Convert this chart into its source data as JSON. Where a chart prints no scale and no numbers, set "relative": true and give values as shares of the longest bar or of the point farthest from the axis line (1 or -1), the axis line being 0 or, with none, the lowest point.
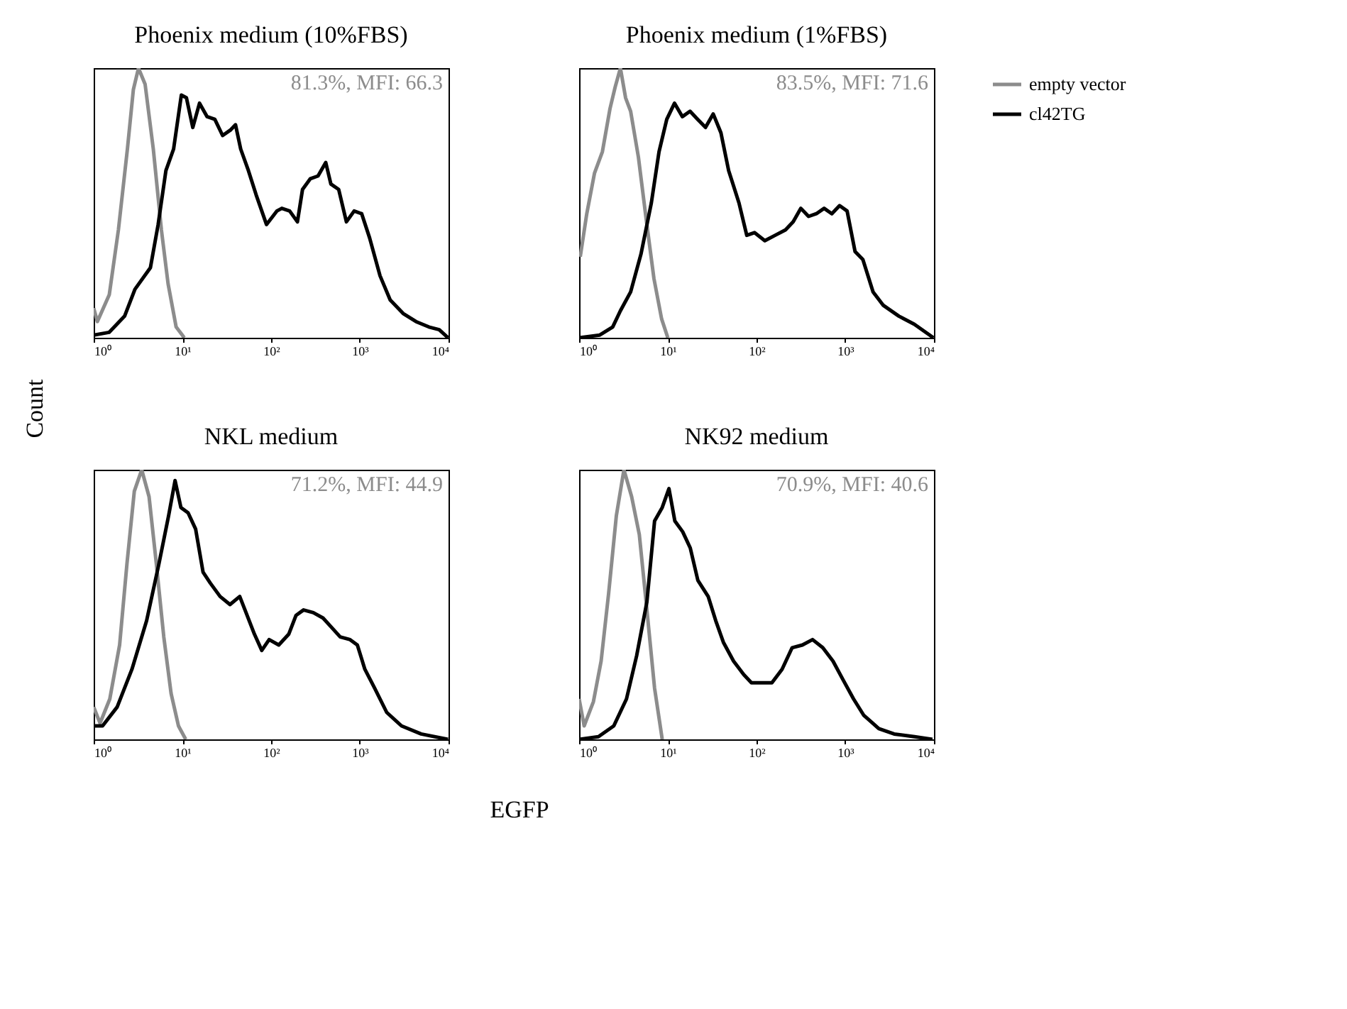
{
  "chart_data": [
    {
      "type": "line",
      "title": "Phoenix medium (10%FBS)",
      "xlabel": "EGFP",
      "ylabel": "Count",
      "annotations": [
        "81.3%, MFI: 66.3"
      ],
      "relative": true,
      "log": "x",
      "grid": false,
      "xlim": [
        1,
        10000
      ],
      "xticks": [
        {
          "value": 1,
          "label": "10⁰"
        },
        {
          "value": 10,
          "label": "10¹"
        },
        {
          "value": 100,
          "label": "10²"
        },
        {
          "value": 1000,
          "label": "10³"
        },
        {
          "value": 10000,
          "label": "10⁴"
        }
      ],
      "series": [
        {
          "color": "#8c8c8c",
          "x": [
            1,
            1.1,
            1.5,
            1.9,
            2.4,
            2.8,
            3.2,
            3.8,
            4.7,
            5.8,
            6.9,
            8.5,
            10.5
          ],
          "values": [
            0.11,
            0.06,
            0.16,
            0.4,
            0.7,
            0.92,
            1.0,
            0.94,
            0.7,
            0.4,
            0.2,
            0.04,
            0
          ]
        },
        {
          "color": "#000000",
          "x": [
            1,
            1.49,
            2.23,
            2.92,
            4.36,
            5.33,
            6.52,
            7.96,
            9.73,
            11.1,
            13.1,
            15.6,
            19.0,
            23.2,
            28.4,
            34.7,
            39.7,
            45.4,
            55.5,
            67.8,
            88.7,
            116,
            132,
            162,
            198,
            226,
            277,
            338,
            413,
            472,
            578,
            706,
            863,
            1050,
            1290,
            1690,
            2200,
            3080,
            4300,
            6010,
            7850,
            9870
          ],
          "values": [
            0.01,
            0.02,
            0.08,
            0.18,
            0.26,
            0.42,
            0.62,
            0.7,
            0.9,
            0.89,
            0.78,
            0.87,
            0.82,
            0.81,
            0.75,
            0.77,
            0.79,
            0.7,
            0.62,
            0.53,
            0.42,
            0.47,
            0.48,
            0.47,
            0.43,
            0.55,
            0.59,
            0.6,
            0.65,
            0.57,
            0.55,
            0.43,
            0.47,
            0.46,
            0.37,
            0.23,
            0.14,
            0.09,
            0.06,
            0.04,
            0.03,
            0
          ]
        }
      ]
    },
    {
      "type": "line",
      "title": "Phoenix medium (1%FBS)",
      "annotations": [
        "83.5%, MFI: 71.6"
      ],
      "relative": true,
      "log": "x",
      "grid": false,
      "legend": "right",
      "xlim": [
        1,
        10000
      ],
      "xticks": [
        {
          "value": 1,
          "label": "10⁰"
        },
        {
          "value": 10,
          "label": "10¹"
        },
        {
          "value": 100,
          "label": "10²"
        },
        {
          "value": 1000,
          "label": "10³"
        },
        {
          "value": 10000,
          "label": "10⁴"
        }
      ],
      "series": [
        {
          "name": "empty vector",
          "color": "#8c8c8c",
          "x": [
            1.03,
            1.22,
            1.49,
            1.83,
            2.23,
            2.55,
            2.92,
            3.34,
            3.81,
            4.66,
            5.7,
            6.97,
            8.51,
            10
          ],
          "values": [
            0.3,
            0.46,
            0.61,
            0.69,
            0.85,
            0.93,
            1.0,
            0.89,
            0.84,
            0.67,
            0.44,
            0.22,
            0.07,
            0
          ]
        },
        {
          "name": "cl42TG",
          "color": "#000000",
          "x": [
            1,
            1.71,
            2.39,
            2.92,
            3.81,
            4.98,
            6.52,
            7.96,
            9.73,
            11.9,
            14.6,
            17.8,
            21.7,
            26.6,
            32.5,
            39.7,
            48.5,
            63.4,
            77.6,
            94.8,
            124,
            162,
            212,
            259,
            316,
            386,
            472,
            578,
            706,
            863,
            1050,
            1290,
            1580,
            2060,
            2690,
            4030,
            6010,
            9870
          ],
          "values": [
            0,
            0.01,
            0.04,
            0.1,
            0.17,
            0.31,
            0.5,
            0.69,
            0.81,
            0.87,
            0.82,
            0.84,
            0.81,
            0.78,
            0.83,
            0.76,
            0.62,
            0.5,
            0.38,
            0.39,
            0.36,
            0.38,
            0.4,
            0.43,
            0.48,
            0.45,
            0.46,
            0.48,
            0.46,
            0.49,
            0.47,
            0.32,
            0.29,
            0.17,
            0.12,
            0.08,
            0.05,
            0
          ]
        }
      ]
    },
    {
      "type": "line",
      "title": "NKL medium",
      "annotations": [
        "71.2%, MFI: 44.9"
      ],
      "relative": true,
      "log": "x",
      "grid": false,
      "xlim": [
        1,
        10000
      ],
      "xticks": [
        {
          "value": 1,
          "label": "10⁰"
        },
        {
          "value": 10,
          "label": "10¹"
        },
        {
          "value": 100,
          "label": "10²"
        },
        {
          "value": 1000,
          "label": "10³"
        },
        {
          "value": 10000,
          "label": "10⁴"
        }
      ],
      "series": [
        {
          "color": "#8c8c8c",
          "x": [
            1,
            1.18,
            1.52,
            1.96,
            2.37,
            2.87,
            3.48,
            4.21,
            5.09,
            6.17,
            7.46,
            9.03,
            10.9
          ],
          "values": [
            0.12,
            0.06,
            0.15,
            0.35,
            0.65,
            0.92,
            1.0,
            0.9,
            0.65,
            0.38,
            0.17,
            0.05,
            0
          ]
        },
        {
          "color": "#000000",
          "x": [
            1,
            1.26,
            1.84,
            2.7,
            3.95,
            5.43,
            7.0,
            8.27,
            9.62,
            11.6,
            14.1,
            17.1,
            20.6,
            26.6,
            34.4,
            44.3,
            53.6,
            64.9,
            78.5,
            95.0,
            122,
            158,
            191,
            232,
            299,
            385,
            466,
            601,
            776,
            938,
            1140,
            1470,
            2010,
            2950,
            4910,
            9870
          ],
          "values": [
            0.05,
            0.05,
            0.12,
            0.26,
            0.44,
            0.65,
            0.83,
            0.96,
            0.86,
            0.84,
            0.78,
            0.62,
            0.58,
            0.53,
            0.5,
            0.53,
            0.46,
            0.39,
            0.33,
            0.37,
            0.35,
            0.39,
            0.46,
            0.48,
            0.47,
            0.45,
            0.42,
            0.38,
            0.37,
            0.35,
            0.26,
            0.19,
            0.1,
            0.05,
            0.02,
            0
          ]
        }
      ]
    },
    {
      "type": "line",
      "title": "NK92 medium",
      "annotations": [
        "70.9%, MFI: 40.6"
      ],
      "relative": true,
      "log": "x",
      "grid": false,
      "xlim": [
        1,
        10000
      ],
      "xticks": [
        {
          "value": 1,
          "label": "10⁰"
        },
        {
          "value": 10,
          "label": "10¹"
        },
        {
          "value": 100,
          "label": "10²"
        },
        {
          "value": 1000,
          "label": "10³"
        },
        {
          "value": 10000,
          "label": "10⁴"
        }
      ],
      "series": [
        {
          "color": "#8c8c8c",
          "x": [
            1,
            1.14,
            1.45,
            1.77,
            2.15,
            2.63,
            3.2,
            3.91,
            4.77,
            5.81,
            7.09,
            8.65
          ],
          "values": [
            0.15,
            0.05,
            0.14,
            0.29,
            0.54,
            0.83,
            1.0,
            0.9,
            0.76,
            0.48,
            0.19,
            0
          ]
        },
        {
          "color": "#000000",
          "x": [
            1,
            1.65,
            2.46,
            3.42,
            4.45,
            5.81,
            7.09,
            8.65,
            10.3,
            12.0,
            14.7,
            17.9,
            21.8,
            28.5,
            34.7,
            42.3,
            55.1,
            71.8,
            87.6,
            114,
            149,
            194,
            252,
            329,
            428,
            558,
            728,
            948,
            1240,
            1610,
            2390,
            3560,
            6050,
            9610
          ],
          "values": [
            0,
            0.01,
            0.05,
            0.15,
            0.31,
            0.51,
            0.81,
            0.86,
            0.93,
            0.81,
            0.77,
            0.71,
            0.59,
            0.53,
            0.44,
            0.36,
            0.29,
            0.24,
            0.21,
            0.21,
            0.21,
            0.26,
            0.34,
            0.35,
            0.37,
            0.34,
            0.29,
            0.22,
            0.15,
            0.09,
            0.04,
            0.02,
            0.01,
            0
          ]
        }
      ]
    }
  ]
}
